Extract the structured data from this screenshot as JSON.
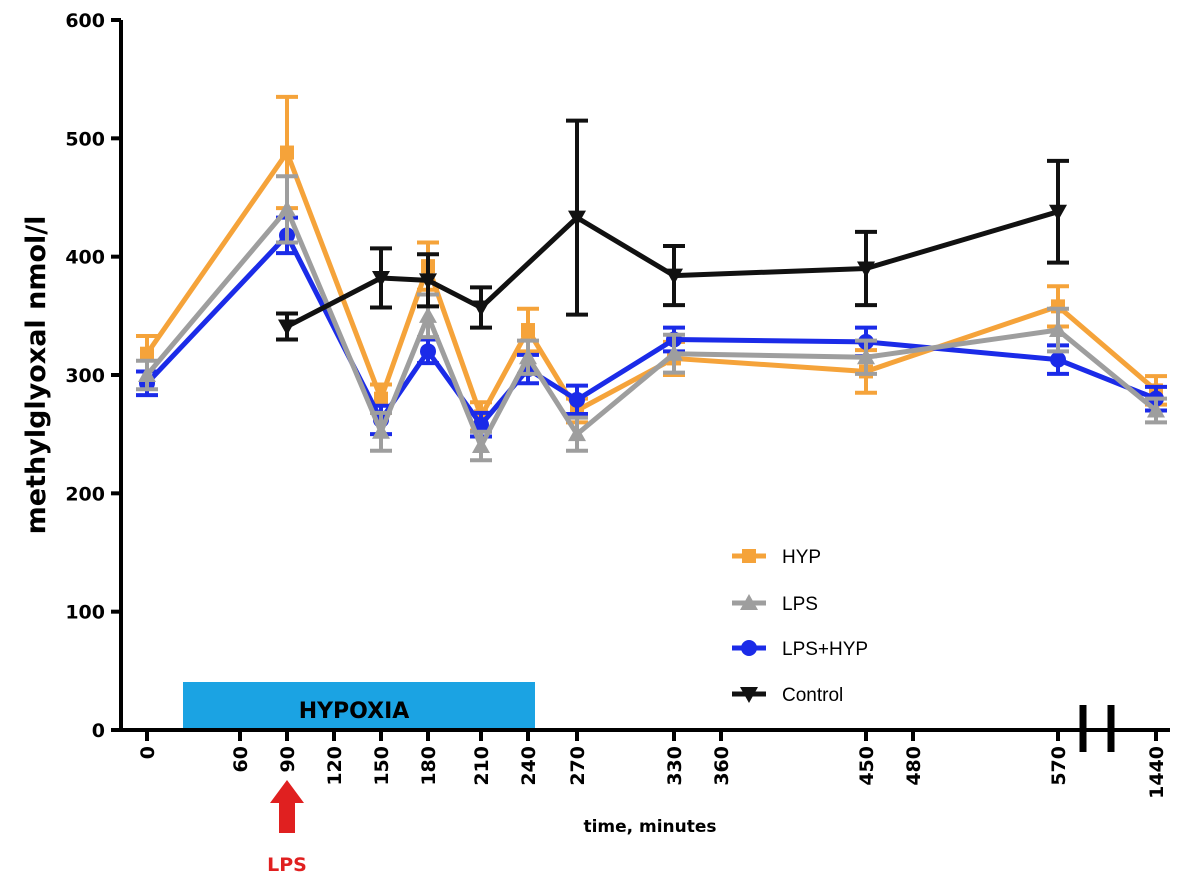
{
  "chart_data": {
    "type": "line",
    "ylabel": "methylglyoxal nmol/l",
    "xlabel": "time, minutes",
    "ylim": [
      0,
      600
    ],
    "y_ticks": [
      0,
      100,
      200,
      300,
      400,
      500,
      600
    ],
    "x_tick_labels": [
      "0",
      "60",
      "90",
      "120",
      "150",
      "180",
      "210",
      "240",
      "270",
      "330",
      "360",
      "450",
      "480",
      "570",
      "1440"
    ],
    "axis_break": "between 570 and 1440",
    "legend_placement": "bottom-right",
    "series": [
      {
        "name": "HYP",
        "color": "#F5A33A",
        "marker": "square",
        "x": [
          "0",
          "90",
          "150",
          "180",
          "210",
          "240",
          "270",
          "330",
          "450",
          "570",
          "1440"
        ],
        "values": [
          318,
          488,
          280,
          392,
          265,
          338,
          270,
          314,
          303,
          358,
          287
        ],
        "error": [
          15,
          47,
          12,
          20,
          12,
          18,
          10,
          14,
          18,
          17,
          12
        ]
      },
      {
        "name": "LPS",
        "color": "#9E9E9E",
        "marker": "triangle-up",
        "x": [
          "0",
          "90",
          "150",
          "180",
          "210",
          "240",
          "270",
          "330",
          "450",
          "570",
          "1440"
        ],
        "values": [
          300,
          440,
          252,
          350,
          240,
          315,
          250,
          318,
          315,
          338,
          270
        ],
        "error": [
          12,
          28,
          16,
          18,
          12,
          14,
          14,
          16,
          14,
          18,
          10
        ]
      },
      {
        "name": "LPS+HYP",
        "color": "#1B2BE8",
        "marker": "circle",
        "x": [
          "0",
          "90",
          "150",
          "180",
          "210",
          "240",
          "270",
          "330",
          "450",
          "570",
          "1440"
        ],
        "values": [
          293,
          418,
          262,
          320,
          258,
          305,
          279,
          330,
          328,
          313,
          280
        ],
        "error": [
          10,
          15,
          12,
          10,
          10,
          12,
          12,
          10,
          12,
          12,
          10
        ]
      },
      {
        "name": "Control",
        "color": "#111111",
        "marker": "triangle-down",
        "x": [
          "90",
          "150",
          "180",
          "210",
          "270",
          "330",
          "450",
          "570"
        ],
        "values": [
          341,
          382,
          380,
          357,
          433,
          384,
          390,
          438
        ],
        "error": [
          11,
          25,
          22,
          17,
          82,
          25,
          31,
          43
        ]
      }
    ],
    "annotations": {
      "hypoxia_label": "HYPOXIA",
      "hypoxia_color": "#1BA3E3",
      "lps_label": "LPS",
      "lps_at": "90",
      "lps_color": "#E02020"
    }
  }
}
